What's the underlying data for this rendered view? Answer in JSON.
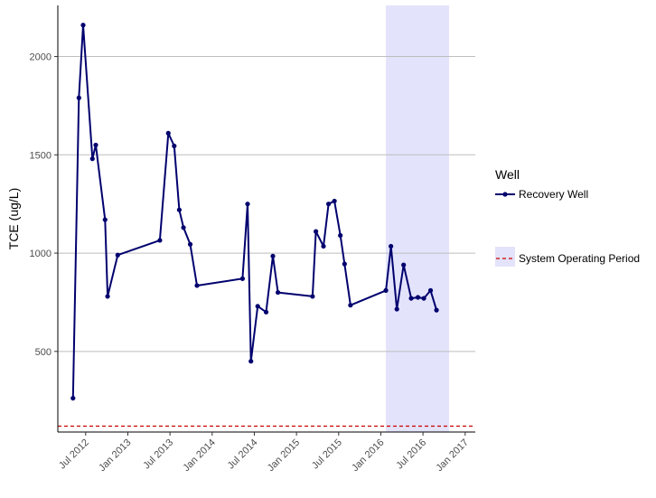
{
  "chart_data": {
    "type": "line",
    "title": "",
    "xlabel": "",
    "ylabel": "TCE (ug/L)",
    "ylim": [
      90,
      2260
    ],
    "xlim": [
      2012.17,
      2017.12
    ],
    "y_ticks": [
      500,
      1000,
      1500,
      2000
    ],
    "y_tick_labels": [
      "500",
      "1000",
      "1500",
      "2000"
    ],
    "x_ticks": [
      2012.5,
      2013.0,
      2013.5,
      2014.0,
      2014.5,
      2015.0,
      2015.5,
      2016.0,
      2016.5,
      2017.0
    ],
    "x_tick_labels": [
      "Jul 2012",
      "Jan 2013",
      "Jul 2013",
      "Jan 2014",
      "Jul 2014",
      "Jan 2015",
      "Jul 2015",
      "Jan 2016",
      "Jul 2016",
      "Jan 2017"
    ],
    "grid": "horizontal major",
    "series": [
      {
        "name": "Recovery Well",
        "color": "#00006e",
        "x": [
          2012.35,
          2012.42,
          2012.47,
          2012.58,
          2012.62,
          2012.73,
          2012.76,
          2012.88,
          2013.38,
          2013.48,
          2013.55,
          2013.61,
          2013.66,
          2013.74,
          2013.82,
          2014.36,
          2014.42,
          2014.46,
          2014.54,
          2014.64,
          2014.72,
          2014.78,
          2015.19,
          2015.23,
          2015.32,
          2015.38,
          2015.45,
          2015.52,
          2015.57,
          2015.64,
          2016.06,
          2016.12,
          2016.19,
          2016.27,
          2016.36,
          2016.44,
          2016.51,
          2016.59,
          2016.66
        ],
        "values": [
          262,
          1790,
          2160,
          1480,
          1550,
          1170,
          780,
          990,
          1065,
          1610,
          1545,
          1220,
          1130,
          1045,
          835,
          870,
          1250,
          450,
          730,
          700,
          985,
          800,
          780,
          1110,
          1035,
          1250,
          1265,
          1090,
          945,
          735,
          810,
          1035,
          715,
          940,
          770,
          775,
          770,
          810,
          710
        ]
      }
    ],
    "reference_line": {
      "name": "System Operating Period",
      "y": 120,
      "color": "#cc0000",
      "style": "dashed"
    },
    "shaded_region": {
      "name": "System Operating Period",
      "x_start": 2016.06,
      "x_end": 2016.81,
      "color": "#e3e3fb"
    },
    "legend": {
      "title": "Well",
      "position": "right"
    }
  }
}
